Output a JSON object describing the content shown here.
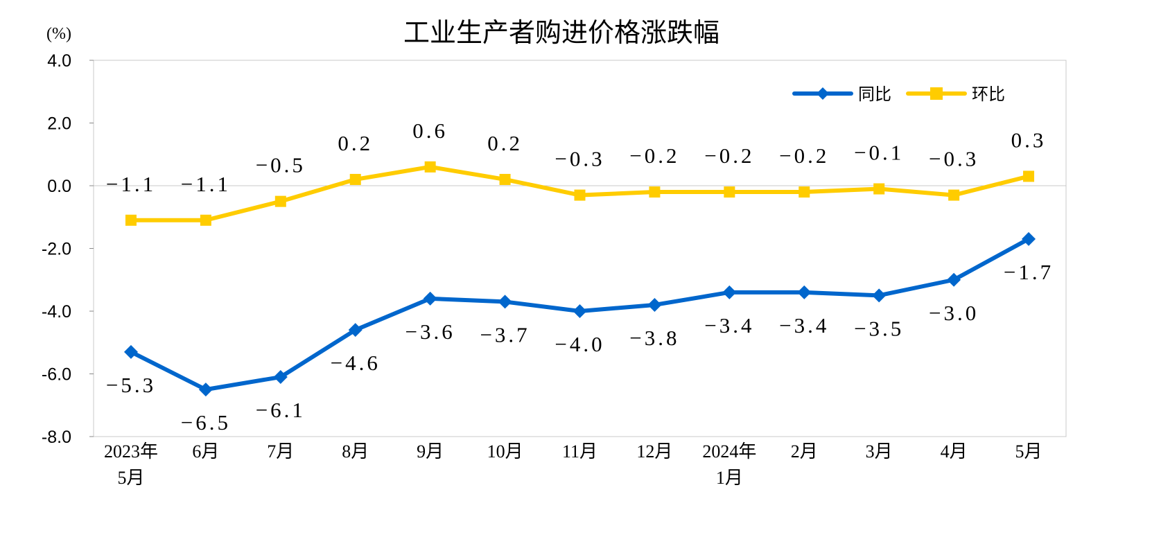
{
  "chart_data": {
    "type": "line",
    "title": "工业生产者购进价格涨跌幅",
    "ylabel": "(%)",
    "ylim": [
      -8.0,
      4.0
    ],
    "yticks": [
      "4.0",
      "2.0",
      "0.0",
      "-2.0",
      "-4.0",
      "-6.0",
      "-8.0"
    ],
    "ytick_values": [
      4,
      2,
      0,
      -2,
      -4,
      -6,
      -8
    ],
    "categories": [
      [
        "2023年",
        "5月"
      ],
      [
        "6月"
      ],
      [
        "7月"
      ],
      [
        "8月"
      ],
      [
        "9月"
      ],
      [
        "10月"
      ],
      [
        "11月"
      ],
      [
        "12月"
      ],
      [
        "2024年",
        "1月"
      ],
      [
        "2月"
      ],
      [
        "3月"
      ],
      [
        "4月"
      ],
      [
        "5月"
      ]
    ],
    "grid": false,
    "legend_position": "top-right",
    "series": [
      {
        "name": "同比",
        "color": "#0066cc",
        "marker": "diamond",
        "label_position": "below",
        "values": [
          -5.3,
          -6.5,
          -6.1,
          -4.6,
          -3.6,
          -3.7,
          -4.0,
          -3.8,
          -3.4,
          -3.4,
          -3.5,
          -3.0,
          -1.7
        ]
      },
      {
        "name": "环比",
        "color": "#ffcc00",
        "marker": "square",
        "label_position": "above",
        "values": [
          -1.1,
          -1.1,
          -0.5,
          0.2,
          0.6,
          0.2,
          -0.3,
          -0.2,
          -0.2,
          -0.2,
          -0.1,
          -0.3,
          0.3
        ]
      }
    ]
  }
}
